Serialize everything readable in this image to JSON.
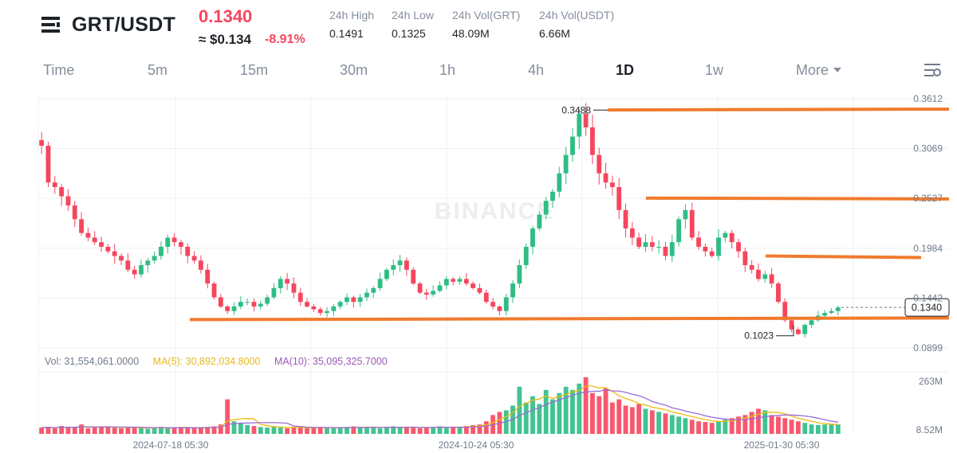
{
  "header": {
    "pair": "GRT/USDT",
    "price": "0.1340",
    "usd_price": "≈ $0.134",
    "change": "-8.91%",
    "stats": [
      {
        "label": "24h High",
        "value": "0.1491"
      },
      {
        "label": "24h Low",
        "value": "0.1325"
      },
      {
        "label": "24h Vol(GRT)",
        "value": "48.09M"
      },
      {
        "label": "24h Vol(USDT)",
        "value": "6.66M"
      }
    ]
  },
  "tabs": [
    "Time",
    "5m",
    "15m",
    "30m",
    "1h",
    "4h",
    "1D",
    "1w",
    "More"
  ],
  "active_tab": "1D",
  "volume_legend": {
    "vol": "Vol: 31,554,061.0000",
    "ma5": "MA(5): 30,892,034.8000",
    "ma10": "MA(10): 35,095,325.7000"
  },
  "watermark": "BINANCE",
  "colors": {
    "up": "#2ebd85",
    "down": "#f6465d",
    "line": "#f07b2e",
    "ma5": "#f0b90b",
    "ma10": "#9b6bd6",
    "grid": "#eef0f2"
  },
  "chart_data": {
    "type": "candlestick",
    "interval": "1D",
    "price_ticks": [
      "0.3612",
      "0.3069",
      "0.2527",
      "0.1984",
      "0.1442",
      "0.0899"
    ],
    "price_tick_values": [
      0.3612,
      0.3069,
      0.2527,
      0.1984,
      0.1442,
      0.0899
    ],
    "volume_ticks": [
      "263M",
      "8.52M"
    ],
    "x_ticks": [
      "2024-07-18 05:30",
      "2024-10-24 05:30",
      "2025-01-30 05:30"
    ],
    "current_price_label": "0.1340",
    "current_price": 0.134,
    "annotations": [
      {
        "text": "0.3488",
        "value": 0.3488,
        "type": "high"
      },
      {
        "text": "0.1023",
        "value": 0.1023,
        "type": "low"
      }
    ],
    "horizontal_levels": [
      0.349,
      0.253,
      0.19,
      0.1225
    ],
    "close_path": [
      0.31,
      0.27,
      0.265,
      0.255,
      0.245,
      0.23,
      0.215,
      0.21,
      0.205,
      0.2,
      0.195,
      0.19,
      0.185,
      0.175,
      0.17,
      0.18,
      0.185,
      0.19,
      0.2,
      0.21,
      0.205,
      0.2,
      0.19,
      0.185,
      0.175,
      0.16,
      0.145,
      0.135,
      0.13,
      0.135,
      0.14,
      0.14,
      0.135,
      0.138,
      0.145,
      0.155,
      0.165,
      0.16,
      0.15,
      0.14,
      0.135,
      0.132,
      0.128,
      0.13,
      0.135,
      0.14,
      0.145,
      0.14,
      0.145,
      0.15,
      0.155,
      0.165,
      0.175,
      0.18,
      0.185,
      0.175,
      0.16,
      0.15,
      0.148,
      0.152,
      0.158,
      0.165,
      0.162,
      0.165,
      0.16,
      0.155,
      0.15,
      0.14,
      0.135,
      0.13,
      0.145,
      0.16,
      0.18,
      0.2,
      0.22,
      0.235,
      0.25,
      0.26,
      0.28,
      0.3,
      0.32,
      0.345,
      0.33,
      0.3,
      0.28,
      0.27,
      0.265,
      0.24,
      0.22,
      0.21,
      0.2,
      0.205,
      0.2,
      0.2,
      0.19,
      0.205,
      0.23,
      0.24,
      0.21,
      0.2,
      0.195,
      0.19,
      0.21,
      0.215,
      0.205,
      0.195,
      0.18,
      0.175,
      0.165,
      0.17,
      0.16,
      0.14,
      0.12,
      0.11,
      0.105,
      0.115,
      0.12,
      0.125,
      0.128,
      0.13,
      0.134
    ],
    "volume_path": [
      20,
      22,
      18,
      25,
      20,
      22,
      30,
      18,
      20,
      24,
      22,
      20,
      18,
      22,
      20,
      18,
      16,
      20,
      22,
      18,
      20,
      22,
      20,
      18,
      20,
      22,
      24,
      30,
      110,
      40,
      35,
      28,
      25,
      22,
      20,
      22,
      20,
      18,
      22,
      20,
      18,
      20,
      22,
      20,
      18,
      20,
      22,
      24,
      20,
      22,
      20,
      18,
      22,
      24,
      20,
      22,
      20,
      18,
      20,
      22,
      24,
      20,
      22,
      20,
      25,
      28,
      30,
      40,
      60,
      70,
      75,
      90,
      150,
      100,
      120,
      95,
      140,
      110,
      130,
      150,
      140,
      160,
      180,
      130,
      120,
      145,
      100,
      110,
      90,
      85,
      95,
      80,
      75,
      70,
      65,
      60,
      55,
      50,
      45,
      40,
      38,
      35,
      40,
      45,
      50,
      55,
      60,
      70,
      80,
      75,
      60,
      55,
      50,
      45,
      40,
      35,
      30,
      28,
      30,
      32,
      30
    ]
  }
}
